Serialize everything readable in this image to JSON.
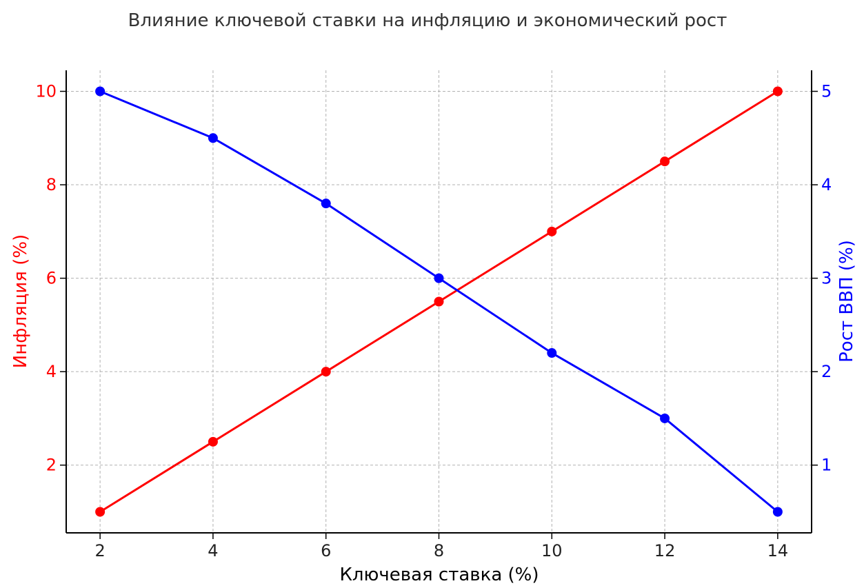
{
  "chart_data": {
    "type": "line",
    "title": "Влияние ключевой ставки на инфляцию и экономический рост",
    "xlabel": "Ключевая ставка (%)",
    "ylabel_left": "Инфляция (%)",
    "ylabel_right": "Рост ВВП (%)",
    "x": [
      2,
      4,
      6,
      8,
      10,
      12,
      14
    ],
    "xlim": [
      1.4,
      14.6
    ],
    "xticks": [
      "2",
      "4",
      "6",
      "8",
      "10",
      "12",
      "14"
    ],
    "grid": true,
    "series": [
      {
        "axis": "left",
        "color": "#ff0000",
        "values": [
          1,
          2.5,
          4,
          5.5,
          7,
          8.5,
          10
        ],
        "ylim": [
          0.55,
          10.45
        ],
        "yticks": [
          "2",
          "4",
          "6",
          "8",
          "10"
        ]
      },
      {
        "axis": "right",
        "color": "#0000ff",
        "values": [
          5,
          4.5,
          3.8,
          3,
          2.2,
          1.5,
          0.5
        ],
        "ylim": [
          0.275,
          5.225
        ],
        "yticks": [
          "1",
          "2",
          "3",
          "4",
          "5"
        ]
      }
    ]
  }
}
